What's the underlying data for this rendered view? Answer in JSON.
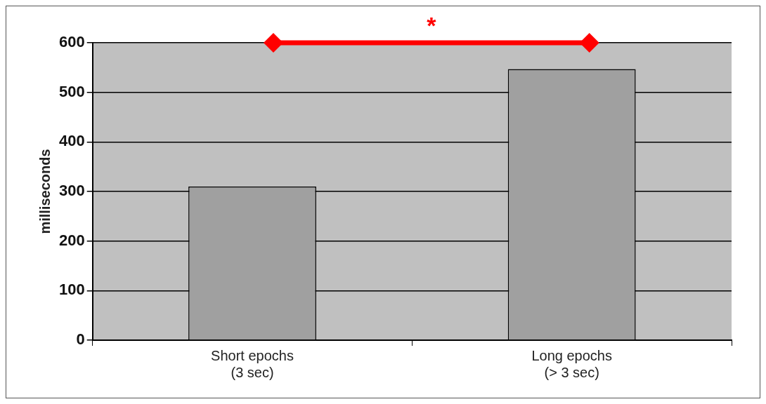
{
  "chart_data": {
    "type": "bar",
    "categories": [
      "Short epochs\n(3 sec)",
      "Long epochs\n(> 3 sec)"
    ],
    "values": [
      310,
      547
    ],
    "color": "#a0a0a0",
    "ylabel": "milliseconds",
    "ylim": [
      0,
      600
    ],
    "yticks": [
      0,
      100,
      200,
      300,
      400,
      500,
      600
    ],
    "grid": "y",
    "legend": false,
    "annotations": [
      "*"
    ]
  }
}
